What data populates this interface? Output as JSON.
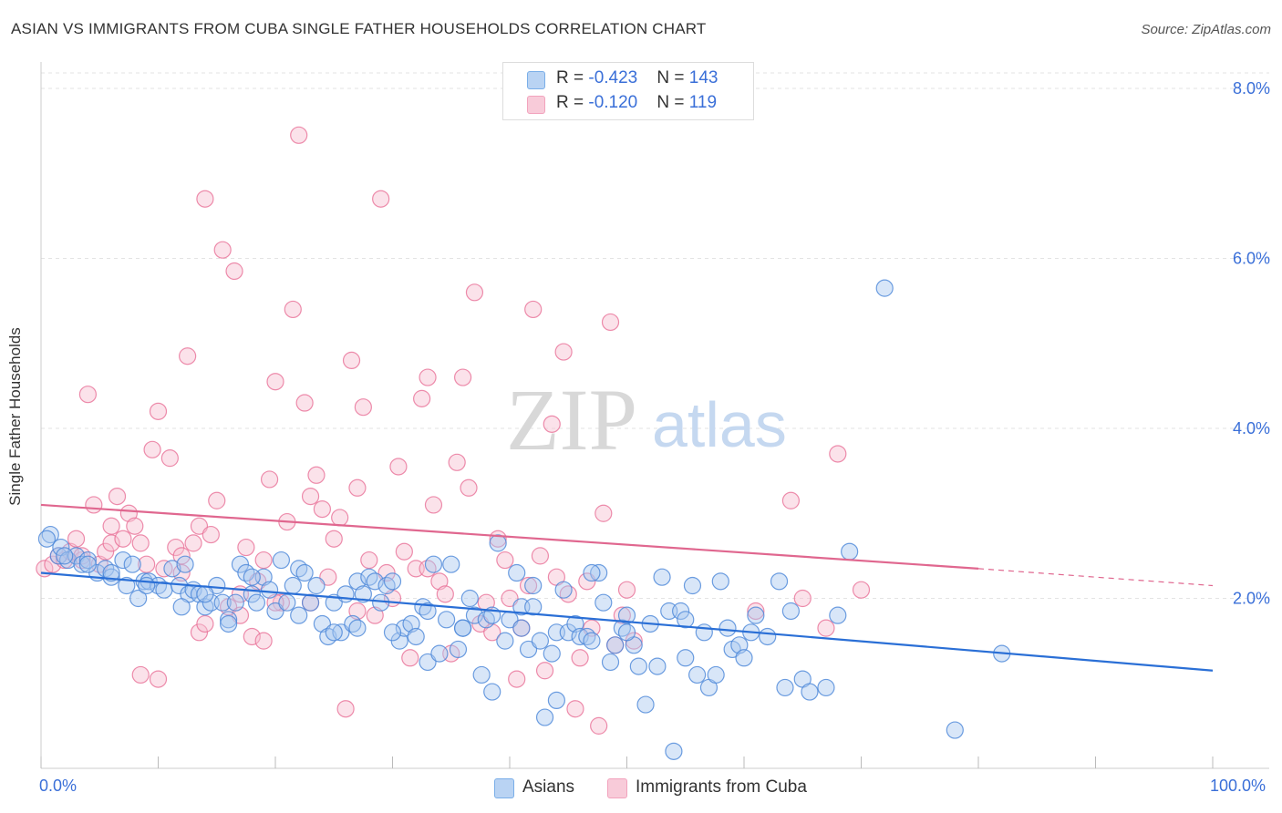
{
  "title": "ASIAN VS IMMIGRANTS FROM CUBA SINGLE FATHER HOUSEHOLDS CORRELATION CHART",
  "source": "Source: ZipAtlas.com",
  "watermark": {
    "zip": "ZIP",
    "atlas": "atlas"
  },
  "legend": {
    "rows": [
      {
        "r_label": "R = ",
        "r_value": "-0.423",
        "n_label": "N = ",
        "n_value": "143",
        "color": "#7aaee8"
      },
      {
        "r_label": "R = ",
        "r_value": "-0.120",
        "n_label": "N = ",
        "n_value": "119",
        "color": "#f2a3bd"
      }
    ]
  },
  "bottom_legend": {
    "asians": "Asians",
    "cuba": "Immigrants from Cuba"
  },
  "chart_data": {
    "type": "scatter",
    "title": "ASIAN VS IMMIGRANTS FROM CUBA SINGLE FATHER HOUSEHOLDS CORRELATION CHART",
    "xlabel": "",
    "ylabel": "Single Father Households",
    "xlim": [
      0,
      100
    ],
    "ylim": [
      0,
      8.0
    ],
    "x_tick_labels": [
      "0.0%",
      "100.0%"
    ],
    "y_tick_labels": [
      "2.0%",
      "4.0%",
      "6.0%",
      "8.0%"
    ],
    "grid": true,
    "legend_position": "top-center",
    "colors": {
      "asians": "#4a86d8",
      "asians_fill": "#a8c8f0",
      "cuba": "#e87097",
      "cuba_fill": "#f6bfd0",
      "trend_asians": "#2a6fd6",
      "trend_cuba": "#e0678f",
      "tick_text": "#3a6fd8"
    },
    "series": [
      {
        "name": "Asians",
        "trend": {
          "x0": 0,
          "y0": 2.3,
          "x1": 100,
          "y1": 1.15
        },
        "points": [
          [
            0.8,
            2.75
          ],
          [
            1.5,
            2.5
          ],
          [
            1.7,
            2.6
          ],
          [
            2.3,
            2.45
          ],
          [
            3.0,
            2.5
          ],
          [
            3.5,
            2.4
          ],
          [
            4.0,
            2.45
          ],
          [
            4.8,
            2.3
          ],
          [
            5.5,
            2.35
          ],
          [
            6.0,
            2.25
          ],
          [
            7.0,
            2.45
          ],
          [
            7.3,
            2.15
          ],
          [
            7.8,
            2.4
          ],
          [
            8.3,
            2.0
          ],
          [
            8.8,
            2.2
          ],
          [
            9.2,
            2.2
          ],
          [
            10.0,
            2.15
          ],
          [
            10.5,
            2.1
          ],
          [
            11.2,
            2.35
          ],
          [
            11.8,
            2.15
          ],
          [
            12.3,
            2.4
          ],
          [
            12.6,
            2.05
          ],
          [
            13.0,
            2.1
          ],
          [
            13.5,
            2.05
          ],
          [
            14.0,
            1.9
          ],
          [
            14.5,
            1.95
          ],
          [
            15.0,
            2.15
          ],
          [
            15.5,
            1.95
          ],
          [
            16.0,
            1.75
          ],
          [
            16.6,
            1.95
          ],
          [
            17.0,
            2.4
          ],
          [
            17.5,
            2.3
          ],
          [
            18.0,
            2.05
          ],
          [
            18.4,
            1.95
          ],
          [
            19.0,
            2.25
          ],
          [
            19.5,
            2.1
          ],
          [
            20.0,
            1.85
          ],
          [
            20.5,
            2.45
          ],
          [
            21.0,
            1.95
          ],
          [
            21.5,
            2.15
          ],
          [
            22.0,
            2.35
          ],
          [
            22.5,
            2.3
          ],
          [
            23.0,
            1.95
          ],
          [
            23.5,
            2.15
          ],
          [
            24.0,
            1.7
          ],
          [
            24.5,
            1.55
          ],
          [
            25.0,
            1.95
          ],
          [
            25.6,
            1.6
          ],
          [
            26.0,
            2.05
          ],
          [
            26.6,
            1.7
          ],
          [
            27.0,
            2.2
          ],
          [
            27.5,
            2.05
          ],
          [
            28.0,
            2.25
          ],
          [
            28.5,
            2.2
          ],
          [
            29.0,
            1.95
          ],
          [
            29.5,
            2.15
          ],
          [
            30.0,
            2.2
          ],
          [
            30.6,
            1.5
          ],
          [
            31.0,
            1.65
          ],
          [
            31.6,
            1.7
          ],
          [
            32.0,
            1.55
          ],
          [
            32.6,
            1.9
          ],
          [
            33.0,
            1.25
          ],
          [
            33.5,
            2.4
          ],
          [
            34.0,
            1.35
          ],
          [
            34.6,
            1.75
          ],
          [
            35.0,
            2.4
          ],
          [
            35.6,
            1.4
          ],
          [
            36.0,
            1.65
          ],
          [
            36.6,
            2.0
          ],
          [
            37.0,
            1.8
          ],
          [
            37.6,
            1.1
          ],
          [
            38.0,
            1.75
          ],
          [
            38.5,
            1.8
          ],
          [
            39.0,
            2.65
          ],
          [
            39.6,
            1.5
          ],
          [
            40.0,
            1.75
          ],
          [
            40.6,
            2.3
          ],
          [
            41.0,
            1.9
          ],
          [
            41.6,
            1.4
          ],
          [
            42.0,
            2.15
          ],
          [
            42.6,
            1.5
          ],
          [
            43.0,
            0.6
          ],
          [
            43.6,
            1.35
          ],
          [
            44.0,
            1.6
          ],
          [
            44.6,
            2.1
          ],
          [
            45.0,
            1.6
          ],
          [
            45.6,
            1.7
          ],
          [
            46.0,
            1.55
          ],
          [
            46.6,
            1.55
          ],
          [
            47.0,
            1.5
          ],
          [
            47.6,
            2.3
          ],
          [
            48.0,
            1.95
          ],
          [
            48.6,
            1.25
          ],
          [
            49.0,
            1.45
          ],
          [
            49.6,
            1.65
          ],
          [
            50.0,
            1.8
          ],
          [
            50.6,
            1.45
          ],
          [
            51.0,
            1.2
          ],
          [
            51.6,
            0.75
          ],
          [
            52.0,
            1.7
          ],
          [
            52.6,
            1.2
          ],
          [
            53.0,
            2.25
          ],
          [
            53.6,
            1.85
          ],
          [
            54.0,
            0.2
          ],
          [
            54.6,
            1.85
          ],
          [
            55.0,
            1.75
          ],
          [
            55.6,
            2.15
          ],
          [
            56.0,
            1.1
          ],
          [
            56.6,
            1.6
          ],
          [
            57.0,
            0.95
          ],
          [
            57.6,
            1.1
          ],
          [
            58.0,
            2.2
          ],
          [
            58.6,
            1.65
          ],
          [
            59.0,
            1.4
          ],
          [
            59.6,
            1.45
          ],
          [
            60.0,
            1.3
          ],
          [
            60.6,
            1.6
          ],
          [
            61.0,
            1.8
          ],
          [
            62.0,
            1.55
          ],
          [
            63.0,
            2.2
          ],
          [
            64.0,
            1.85
          ],
          [
            65.0,
            1.05
          ],
          [
            65.6,
            0.9
          ],
          [
            67.0,
            0.95
          ],
          [
            68.0,
            1.8
          ],
          [
            69.0,
            2.55
          ],
          [
            72.0,
            5.65
          ],
          [
            78.0,
            0.45
          ],
          [
            82.0,
            1.35
          ],
          [
            63.5,
            0.95
          ],
          [
            0.5,
            2.7
          ],
          [
            2.0,
            2.5
          ],
          [
            12.0,
            1.9
          ],
          [
            25.0,
            1.6
          ],
          [
            38.5,
            0.9
          ],
          [
            47.0,
            2.3
          ],
          [
            36.0,
            1.65
          ],
          [
            42.0,
            1.9
          ],
          [
            44.0,
            0.8
          ],
          [
            30.0,
            1.6
          ],
          [
            22.0,
            1.8
          ],
          [
            16.0,
            1.7
          ],
          [
            9.0,
            2.15
          ],
          [
            6.0,
            2.3
          ],
          [
            4.0,
            2.4
          ],
          [
            14.0,
            2.05
          ],
          [
            18.0,
            2.25
          ],
          [
            27.0,
            1.65
          ],
          [
            33.0,
            1.85
          ],
          [
            41.0,
            1.65
          ],
          [
            50.0,
            1.6
          ],
          [
            55.0,
            1.3
          ]
        ]
      },
      {
        "name": "Immigrants from Cuba",
        "trend": {
          "x0": 0,
          "y0": 3.1,
          "x1": 80,
          "y1": 2.35,
          "dash_to_x": 100,
          "dash_to_y": 2.15
        },
        "points": [
          [
            0.3,
            2.35
          ],
          [
            1.0,
            2.4
          ],
          [
            1.5,
            2.5
          ],
          [
            2.0,
            2.45
          ],
          [
            2.5,
            2.55
          ],
          [
            3.0,
            2.7
          ],
          [
            3.5,
            2.45
          ],
          [
            4.0,
            4.4
          ],
          [
            4.5,
            3.1
          ],
          [
            5.0,
            2.4
          ],
          [
            5.5,
            2.55
          ],
          [
            6.0,
            2.65
          ],
          [
            6.5,
            3.2
          ],
          [
            7.0,
            2.7
          ],
          [
            7.5,
            3.0
          ],
          [
            8.0,
            2.85
          ],
          [
            8.5,
            2.65
          ],
          [
            9.0,
            2.4
          ],
          [
            9.5,
            3.75
          ],
          [
            10.0,
            4.2
          ],
          [
            10.5,
            2.35
          ],
          [
            11.0,
            3.65
          ],
          [
            11.5,
            2.6
          ],
          [
            12.0,
            2.3
          ],
          [
            12.5,
            4.85
          ],
          [
            13.0,
            2.65
          ],
          [
            13.5,
            2.85
          ],
          [
            14.0,
            6.7
          ],
          [
            14.5,
            2.75
          ],
          [
            15.0,
            3.15
          ],
          [
            15.5,
            6.1
          ],
          [
            16.0,
            1.9
          ],
          [
            16.5,
            5.85
          ],
          [
            17.0,
            2.05
          ],
          [
            17.5,
            2.6
          ],
          [
            18.0,
            1.55
          ],
          [
            18.5,
            2.2
          ],
          [
            19.0,
            1.5
          ],
          [
            19.5,
            3.4
          ],
          [
            20.0,
            4.55
          ],
          [
            20.5,
            1.95
          ],
          [
            21.0,
            2.9
          ],
          [
            21.5,
            5.4
          ],
          [
            22.0,
            7.45
          ],
          [
            22.5,
            4.3
          ],
          [
            23.0,
            3.2
          ],
          [
            23.5,
            3.45
          ],
          [
            24.0,
            3.05
          ],
          [
            24.5,
            2.25
          ],
          [
            25.0,
            2.7
          ],
          [
            25.5,
            2.95
          ],
          [
            26.0,
            0.7
          ],
          [
            26.5,
            4.8
          ],
          [
            27.0,
            3.3
          ],
          [
            27.5,
            4.25
          ],
          [
            28.0,
            2.45
          ],
          [
            28.5,
            1.8
          ],
          [
            29.0,
            6.7
          ],
          [
            29.5,
            2.3
          ],
          [
            30.0,
            2.0
          ],
          [
            30.5,
            3.55
          ],
          [
            31.0,
            2.55
          ],
          [
            31.5,
            1.3
          ],
          [
            32.0,
            2.35
          ],
          [
            32.5,
            4.35
          ],
          [
            33.0,
            4.6
          ],
          [
            33.5,
            3.1
          ],
          [
            34.0,
            2.2
          ],
          [
            34.5,
            2.05
          ],
          [
            35.0,
            1.35
          ],
          [
            35.5,
            3.6
          ],
          [
            36.0,
            4.6
          ],
          [
            36.5,
            3.3
          ],
          [
            37.0,
            5.6
          ],
          [
            37.5,
            1.7
          ],
          [
            38.0,
            1.95
          ],
          [
            38.5,
            1.6
          ],
          [
            39.0,
            2.7
          ],
          [
            39.6,
            2.45
          ],
          [
            40.0,
            2.0
          ],
          [
            40.6,
            1.05
          ],
          [
            41.0,
            1.65
          ],
          [
            41.6,
            2.15
          ],
          [
            42.0,
            5.4
          ],
          [
            42.6,
            2.5
          ],
          [
            43.0,
            1.15
          ],
          [
            43.6,
            4.05
          ],
          [
            44.0,
            2.25
          ],
          [
            44.6,
            4.9
          ],
          [
            45.0,
            2.05
          ],
          [
            45.6,
            0.7
          ],
          [
            46.0,
            1.3
          ],
          [
            46.6,
            2.2
          ],
          [
            47.0,
            1.65
          ],
          [
            47.6,
            0.5
          ],
          [
            48.0,
            3.0
          ],
          [
            48.6,
            5.25
          ],
          [
            49.0,
            1.45
          ],
          [
            49.6,
            1.8
          ],
          [
            50.0,
            2.1
          ],
          [
            50.6,
            1.5
          ],
          [
            61.0,
            1.85
          ],
          [
            65.0,
            2.0
          ],
          [
            67.0,
            1.65
          ],
          [
            68.0,
            3.7
          ],
          [
            70.0,
            2.1
          ],
          [
            64.0,
            3.15
          ],
          [
            8.5,
            1.1
          ],
          [
            10.0,
            1.05
          ],
          [
            13.5,
            1.6
          ],
          [
            17.0,
            1.8
          ],
          [
            23.0,
            1.95
          ],
          [
            19.0,
            2.45
          ],
          [
            12.0,
            2.5
          ],
          [
            6.0,
            2.85
          ],
          [
            3.5,
            2.5
          ],
          [
            14.0,
            1.7
          ],
          [
            20.0,
            1.95
          ],
          [
            33.0,
            2.35
          ],
          [
            27.0,
            1.85
          ]
        ]
      }
    ]
  }
}
